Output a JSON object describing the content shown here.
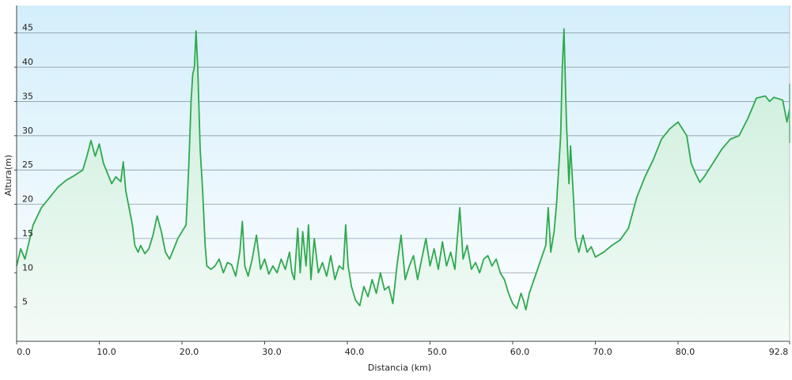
{
  "chart_data": {
    "type": "area",
    "title": "",
    "xlabel": "Distancia  (km)",
    "ylabel": "Altura(m)",
    "xlim": [
      0,
      92.8
    ],
    "ylim": [
      0,
      49
    ],
    "x_ticks": [
      0,
      10,
      20,
      30,
      40,
      50,
      60,
      70,
      80,
      92.8
    ],
    "x_tick_labels": [
      "0.0",
      "10.0",
      "20.0",
      "30.0",
      "40.0",
      "50.0",
      "60.0",
      "70.0",
      "80.0",
      "92.8"
    ],
    "y_ticks": [
      5,
      10,
      15,
      20,
      25,
      30,
      35,
      40,
      45
    ],
    "y_tick_labels": [
      "5",
      "10",
      "15",
      "20",
      "25",
      "30",
      "35",
      "40",
      "45"
    ],
    "grid": true,
    "legend": "none",
    "colors": {
      "line": "#2fa84f",
      "fill_top": "#c8edd9",
      "fill_bottom": "#f4fbf7",
      "bg_top": "#d3eefb",
      "bg_bottom": "#ffffff",
      "grid": "#8b9ca6",
      "axis": "#444444"
    },
    "series": [
      {
        "values": [
          [
            0,
            11
          ],
          [
            0.5,
            13.5
          ],
          [
            1,
            12
          ],
          [
            1.5,
            14.5
          ],
          [
            2,
            17
          ],
          [
            3,
            19.5
          ],
          [
            4,
            21
          ],
          [
            5,
            22.5
          ],
          [
            6,
            23.5
          ],
          [
            7,
            24.2
          ],
          [
            8,
            25
          ],
          [
            8.5,
            27
          ],
          [
            9,
            29.3
          ],
          [
            9.5,
            27
          ],
          [
            10,
            28.8
          ],
          [
            10.5,
            26
          ],
          [
            11,
            24.5
          ],
          [
            11.5,
            23
          ],
          [
            12,
            24
          ],
          [
            12.6,
            23.3
          ],
          [
            12.9,
            26.2
          ],
          [
            13.2,
            22
          ],
          [
            13.6,
            19.5
          ],
          [
            14,
            17
          ],
          [
            14.3,
            14
          ],
          [
            14.7,
            13
          ],
          [
            15,
            14
          ],
          [
            15.5,
            12.8
          ],
          [
            16,
            13.5
          ],
          [
            16.5,
            15.5
          ],
          [
            17,
            18.3
          ],
          [
            17.5,
            16
          ],
          [
            18,
            13
          ],
          [
            18.5,
            12
          ],
          [
            19,
            13.5
          ],
          [
            19.5,
            15
          ],
          [
            20,
            16
          ],
          [
            20.5,
            17
          ],
          [
            20.8,
            25
          ],
          [
            21.1,
            35
          ],
          [
            21.3,
            39
          ],
          [
            21.5,
            40
          ],
          [
            21.7,
            45.3
          ],
          [
            21.9,
            40
          ],
          [
            22.2,
            28
          ],
          [
            22.5,
            22
          ],
          [
            22.8,
            14
          ],
          [
            23,
            11
          ],
          [
            23.5,
            10.5
          ],
          [
            24,
            11
          ],
          [
            24.5,
            12
          ],
          [
            25,
            10
          ],
          [
            25.5,
            11.5
          ],
          [
            26,
            11.2
          ],
          [
            26.5,
            9.5
          ],
          [
            27,
            13
          ],
          [
            27.3,
            17.5
          ],
          [
            27.6,
            11
          ],
          [
            28,
            9.5
          ],
          [
            28.5,
            12
          ],
          [
            29,
            15.5
          ],
          [
            29.5,
            10.5
          ],
          [
            30,
            12
          ],
          [
            30.5,
            9.8
          ],
          [
            31,
            11
          ],
          [
            31.5,
            10
          ],
          [
            32,
            12
          ],
          [
            32.5,
            10.5
          ],
          [
            33,
            13
          ],
          [
            33.3,
            10
          ],
          [
            33.6,
            9
          ],
          [
            34,
            16.5
          ],
          [
            34.3,
            10
          ],
          [
            34.6,
            16
          ],
          [
            35,
            11
          ],
          [
            35.3,
            17
          ],
          [
            35.6,
            9
          ],
          [
            36,
            15
          ],
          [
            36.5,
            10
          ],
          [
            37,
            11.5
          ],
          [
            37.5,
            9.5
          ],
          [
            38,
            12.5
          ],
          [
            38.5,
            9
          ],
          [
            39,
            11
          ],
          [
            39.5,
            10.5
          ],
          [
            39.8,
            17
          ],
          [
            40.1,
            11
          ],
          [
            40.5,
            8
          ],
          [
            41,
            6
          ],
          [
            41.5,
            5.2
          ],
          [
            42,
            8
          ],
          [
            42.5,
            6.5
          ],
          [
            43,
            9
          ],
          [
            43.5,
            7
          ],
          [
            44,
            10
          ],
          [
            44.5,
            7.5
          ],
          [
            45,
            8
          ],
          [
            45.5,
            5.5
          ],
          [
            46,
            11
          ],
          [
            46.5,
            15.5
          ],
          [
            47,
            9
          ],
          [
            47.5,
            11
          ],
          [
            48,
            12.5
          ],
          [
            48.5,
            9
          ],
          [
            49,
            12
          ],
          [
            49.5,
            15
          ],
          [
            50,
            11
          ],
          [
            50.5,
            13.5
          ],
          [
            51,
            10.5
          ],
          [
            51.5,
            14.5
          ],
          [
            52,
            11
          ],
          [
            52.5,
            13
          ],
          [
            53,
            10.5
          ],
          [
            53.3,
            15
          ],
          [
            53.6,
            19.5
          ],
          [
            54,
            12
          ],
          [
            54.5,
            14
          ],
          [
            55,
            10.5
          ],
          [
            55.5,
            11.5
          ],
          [
            56,
            10
          ],
          [
            56.5,
            12
          ],
          [
            57,
            12.5
          ],
          [
            57.5,
            11
          ],
          [
            58,
            12
          ],
          [
            58.5,
            10
          ],
          [
            59,
            9
          ],
          [
            59.5,
            7
          ],
          [
            60,
            5.5
          ],
          [
            60.5,
            4.8
          ],
          [
            61,
            7
          ],
          [
            61.3,
            6
          ],
          [
            61.6,
            4.6
          ],
          [
            62,
            7
          ],
          [
            63,
            10.5
          ],
          [
            64,
            14
          ],
          [
            64.3,
            19.5
          ],
          [
            64.6,
            13
          ],
          [
            65,
            16
          ],
          [
            65.3,
            20
          ],
          [
            65.5,
            24
          ],
          [
            65.8,
            30
          ],
          [
            66,
            40
          ],
          [
            66.2,
            45.6
          ],
          [
            66.5,
            32
          ],
          [
            66.8,
            23
          ],
          [
            67,
            28.5
          ],
          [
            67.3,
            22
          ],
          [
            67.6,
            15
          ],
          [
            68,
            13
          ],
          [
            68.5,
            15.5
          ],
          [
            69,
            13
          ],
          [
            69.5,
            13.8
          ],
          [
            70,
            12.3
          ],
          [
            71,
            13
          ],
          [
            72,
            14
          ],
          [
            73,
            14.8
          ],
          [
            74,
            16.5
          ],
          [
            75,
            21
          ],
          [
            76,
            24
          ],
          [
            77,
            26.5
          ],
          [
            78,
            29.5
          ],
          [
            79,
            31
          ],
          [
            80,
            32
          ],
          [
            81,
            30
          ],
          [
            81.5,
            26
          ],
          [
            82,
            24.5
          ],
          [
            82.5,
            23.2
          ],
          [
            83,
            24
          ],
          [
            84,
            26
          ],
          [
            85,
            28
          ],
          [
            86,
            29.5
          ],
          [
            87,
            30
          ],
          [
            88,
            32.5
          ],
          [
            88.5,
            34
          ],
          [
            89,
            35.5
          ],
          [
            90,
            35.8
          ],
          [
            90.5,
            35
          ],
          [
            91,
            35.6
          ],
          [
            92,
            35.2
          ],
          [
            92.5,
            32
          ],
          [
            93,
            34
          ],
          [
            93.5,
            30
          ],
          [
            94,
            31
          ],
          [
            94.5,
            29
          ],
          [
            95,
            33
          ],
          [
            95.5,
            36
          ],
          [
            96,
            37.5
          ],
          [
            96.3,
            36.5
          ],
          [
            96.6,
            37.6
          ]
        ]
      }
    ]
  }
}
